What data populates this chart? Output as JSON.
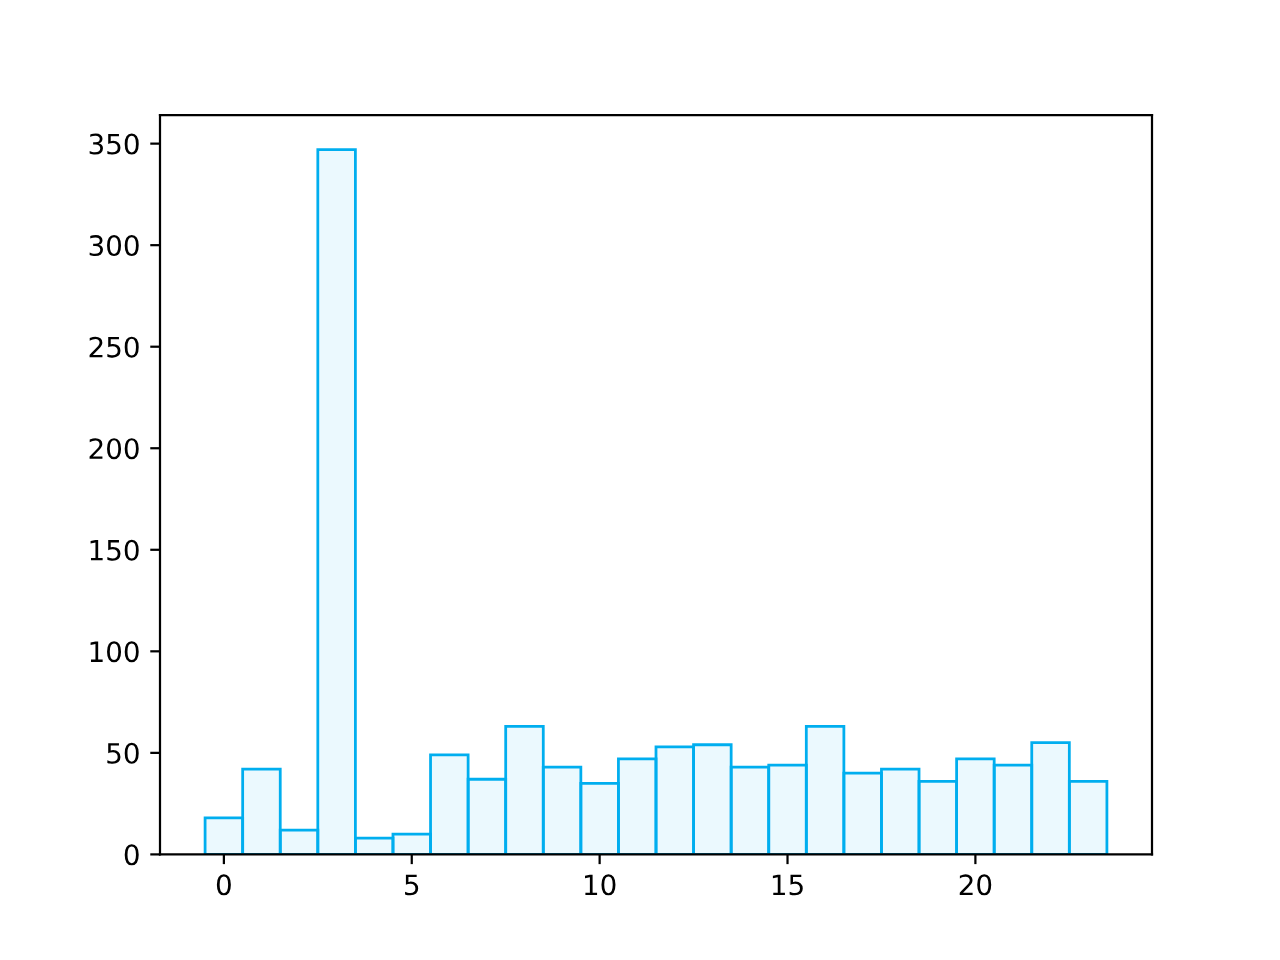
{
  "chart_data": {
    "type": "histogram",
    "bins": [
      -0.5,
      0.5,
      1.5,
      2.5,
      3.5,
      4.5,
      5.5,
      6.5,
      7.5,
      8.5,
      9.5,
      10.5,
      11.5,
      12.5,
      13.5,
      14.5,
      15.5,
      16.5,
      17.5,
      18.5,
      19.5,
      20.5,
      21.5,
      22.5,
      23.5
    ],
    "values": [
      18,
      42,
      12,
      347,
      8,
      10,
      49,
      37,
      63,
      43,
      35,
      47,
      53,
      54,
      43,
      44,
      63,
      40,
      42,
      36,
      47,
      44,
      55,
      36
    ],
    "color": "#00aeef",
    "xlim": [
      -1.7,
      24.7
    ],
    "xticks": [
      0,
      5,
      10,
      15,
      20
    ],
    "ylim": [
      0,
      364
    ],
    "yticks": [
      0,
      50,
      100,
      150,
      200,
      250,
      300,
      350
    ],
    "grid": false,
    "legend": false
  }
}
